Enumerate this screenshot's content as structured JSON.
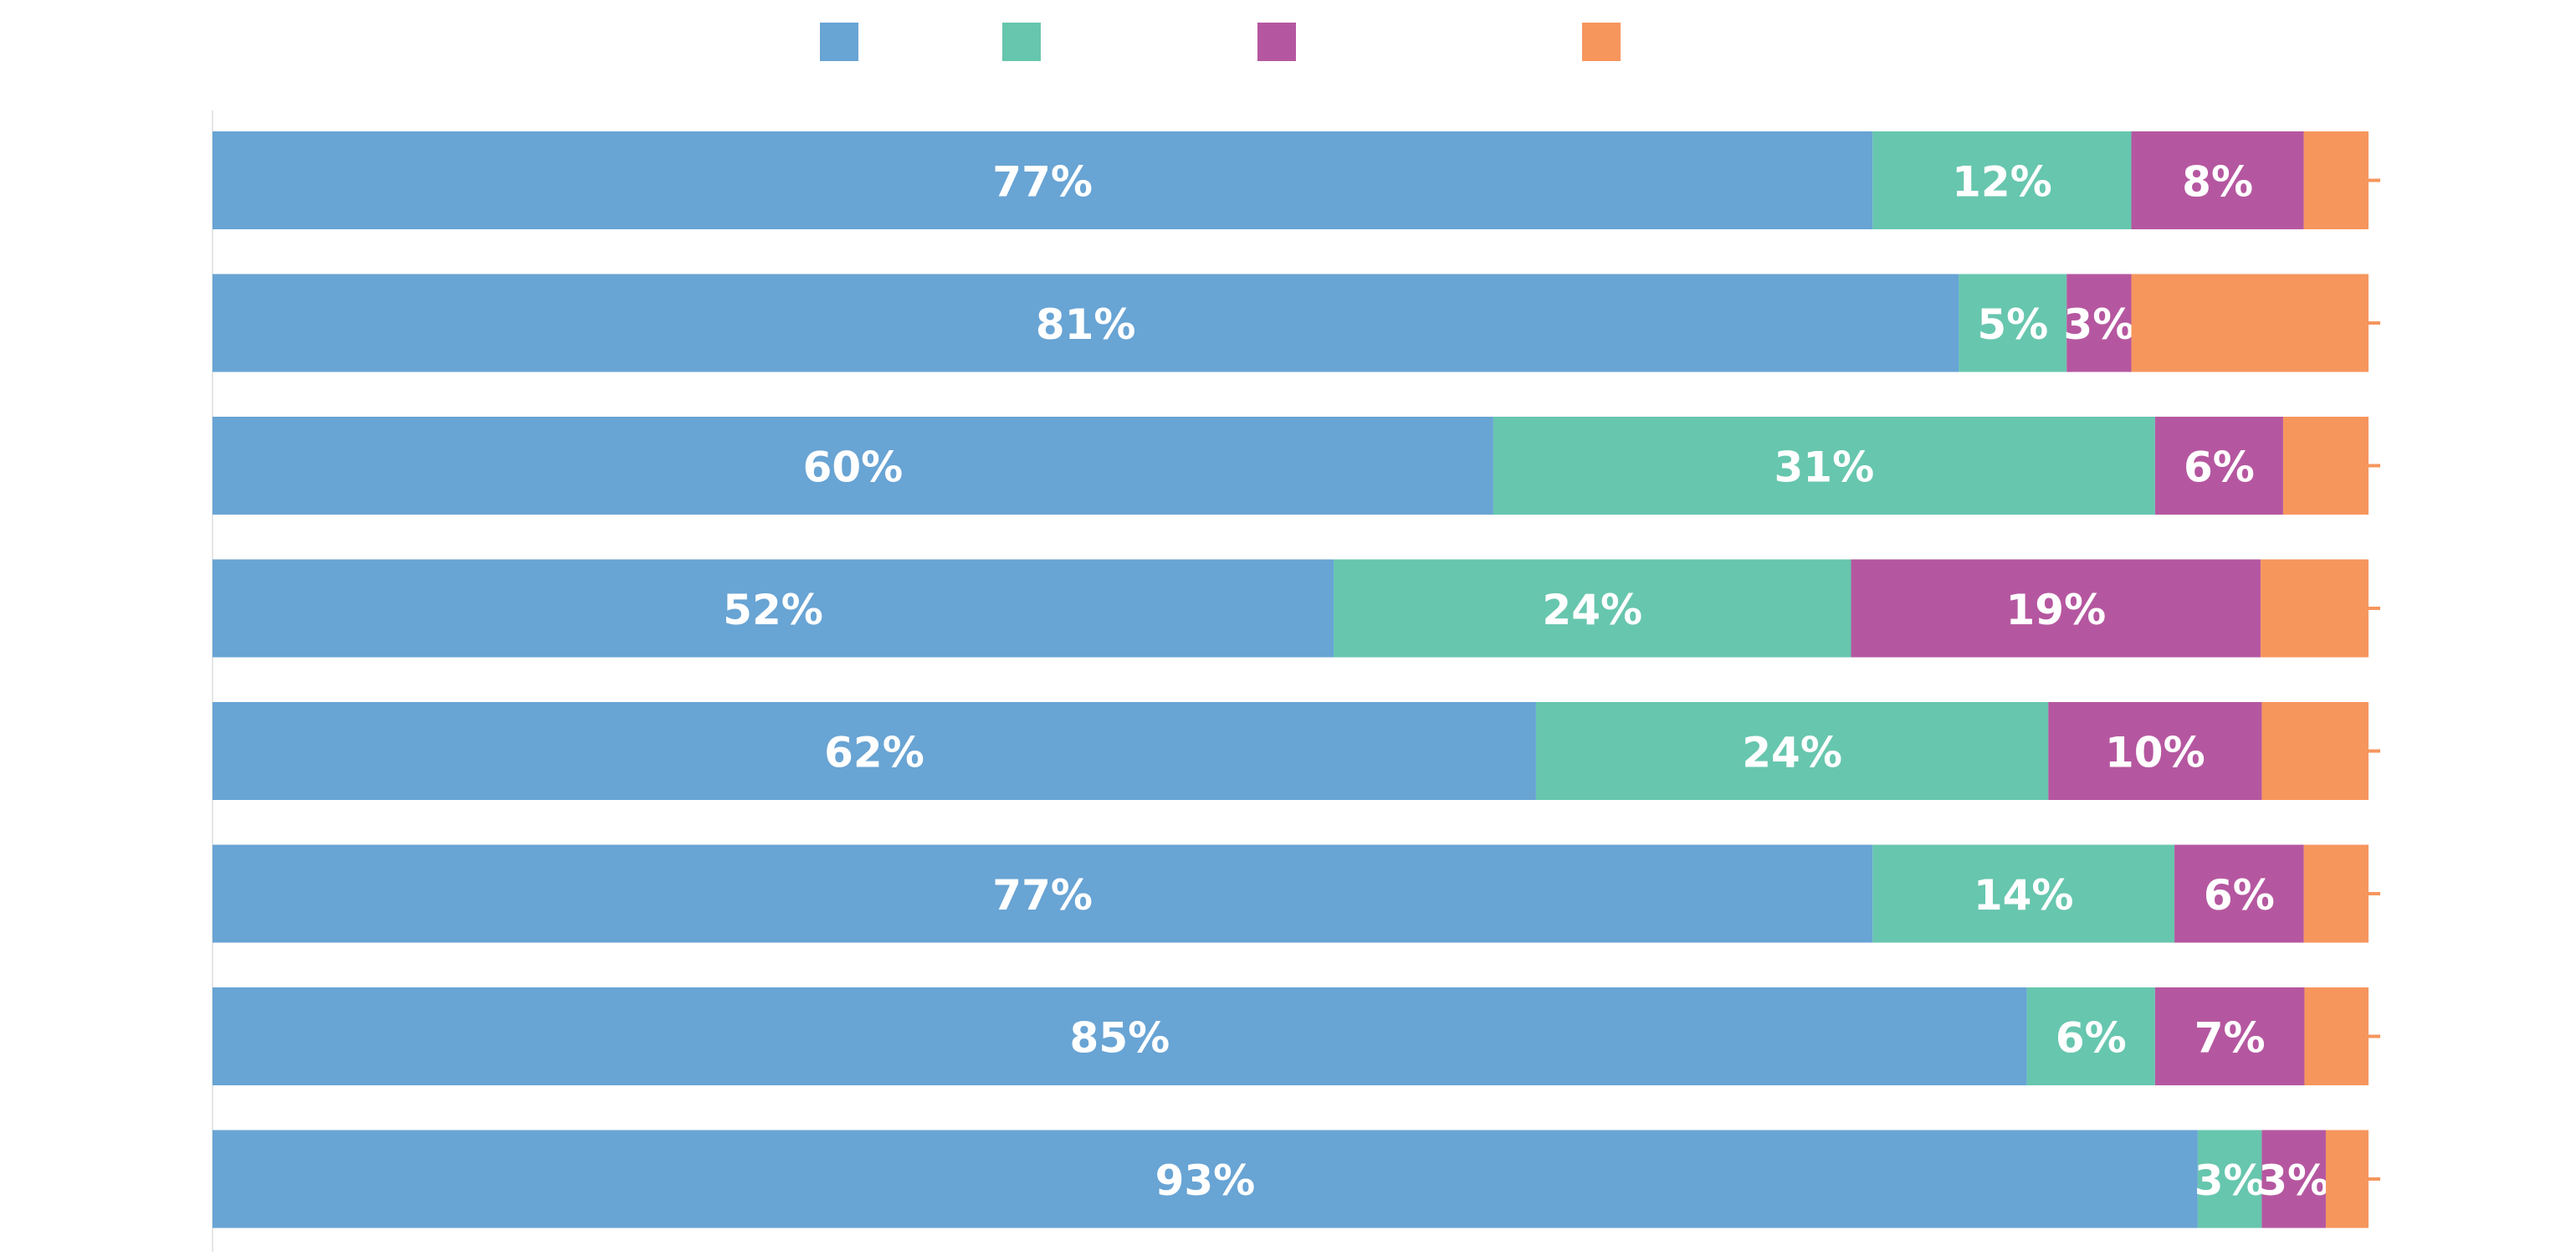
{
  "chart_data": {
    "type": "bar",
    "orientation": "horizontal",
    "stacked": true,
    "title": "",
    "xlabel": "",
    "ylabel": "",
    "xlim": [
      0,
      100
    ],
    "grid": false,
    "legend_position": "top",
    "categories": [
      "",
      "",
      "",
      "",
      "",
      "",
      "",
      ""
    ],
    "series": [
      {
        "color": "#68a4d4",
        "values": [
          77,
          81,
          60,
          52,
          62,
          77,
          85,
          93
        ]
      },
      {
        "color": "#67c6ae",
        "values": [
          12,
          5,
          31,
          24,
          24,
          14,
          6,
          3
        ]
      },
      {
        "color": "#b557a0",
        "values": [
          8,
          3,
          6,
          19,
          10,
          6,
          7,
          3
        ]
      },
      {
        "color": "#f6965d",
        "values": [
          3,
          11,
          4,
          5,
          5,
          3,
          3,
          2
        ]
      }
    ],
    "data_labels": [
      [
        "77%",
        "12%",
        "8%",
        ""
      ],
      [
        "81%",
        "5%",
        "3%",
        ""
      ],
      [
        "60%",
        "31%",
        "6%",
        ""
      ],
      [
        "52%",
        "24%",
        "19%",
        ""
      ],
      [
        "62%",
        "24%",
        "10%",
        ""
      ],
      [
        "77%",
        "14%",
        "6%",
        ""
      ],
      [
        "85%",
        "6%",
        "7%",
        ""
      ],
      [
        "93%",
        "3%",
        "3%",
        ""
      ]
    ]
  }
}
